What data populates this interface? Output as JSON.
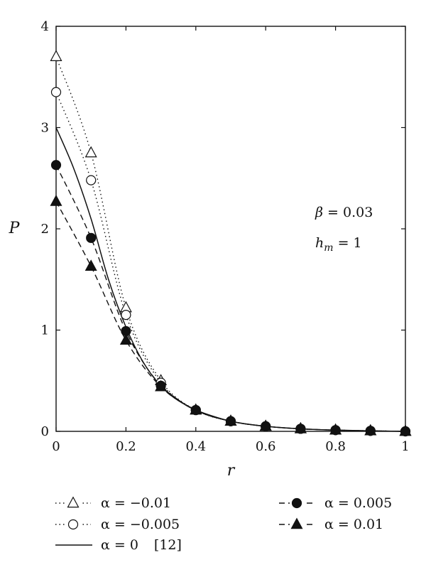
{
  "chart_data": {
    "type": "line",
    "xlabel": "r",
    "ylabel": "P",
    "xlim": [
      0,
      1
    ],
    "ylim": [
      0,
      4
    ],
    "xticks": [
      "0",
      "0.2",
      "0.4",
      "0.6",
      "0.8",
      "1"
    ],
    "yticks": [
      "0",
      "1",
      "2",
      "3",
      "4"
    ],
    "grid": false,
    "annotations": {
      "beta": {
        "symbol": "β",
        "eq": " = 0.03"
      },
      "hm": {
        "symbol": "h",
        "sub": "m",
        "eq": " = 1"
      }
    },
    "series": [
      {
        "name": "α = −0.01",
        "marker": "open-triangle",
        "line": "dotted",
        "x": [
          0,
          0.1,
          0.2,
          0.3,
          0.4,
          0.5,
          0.6,
          0.7,
          0.8,
          0.9,
          1
        ],
        "y": [
          3.7,
          2.75,
          1.22,
          0.5,
          0.21,
          0.1,
          0.05,
          0.025,
          0.012,
          0.005,
          0
        ]
      },
      {
        "name": "α = −0.005",
        "marker": "open-circle",
        "line": "dotted",
        "x": [
          0,
          0.1,
          0.2,
          0.3,
          0.4,
          0.5,
          0.6,
          0.7,
          0.8,
          0.9,
          1
        ],
        "y": [
          3.35,
          2.48,
          1.15,
          0.48,
          0.21,
          0.1,
          0.05,
          0.025,
          0.012,
          0.005,
          0
        ]
      },
      {
        "name": "α = 0",
        "ref": "[12]",
        "marker": "none",
        "line": "solid",
        "x": [
          0,
          0.05,
          0.1,
          0.15,
          0.2,
          0.25,
          0.3,
          0.35,
          0.4,
          0.5,
          0.6,
          0.7,
          0.8,
          0.9,
          1
        ],
        "y": [
          3.0,
          2.6,
          2.1,
          1.5,
          1.03,
          0.68,
          0.45,
          0.31,
          0.21,
          0.1,
          0.05,
          0.025,
          0.012,
          0.005,
          0
        ]
      },
      {
        "name": "α = 0.005",
        "marker": "filled-circle",
        "line": "dashed",
        "x": [
          0,
          0.1,
          0.2,
          0.3,
          0.4,
          0.5,
          0.6,
          0.7,
          0.8,
          0.9,
          1
        ],
        "y": [
          2.63,
          1.91,
          0.99,
          0.45,
          0.21,
          0.1,
          0.05,
          0.025,
          0.012,
          0.005,
          0
        ]
      },
      {
        "name": "α = 0.01",
        "marker": "filled-triangle",
        "line": "dashed",
        "x": [
          0,
          0.1,
          0.2,
          0.3,
          0.4,
          0.5,
          0.6,
          0.7,
          0.8,
          0.9,
          1
        ],
        "y": [
          2.27,
          1.63,
          0.9,
          0.44,
          0.21,
          0.1,
          0.05,
          0.025,
          0.012,
          0.005,
          0
        ]
      }
    ]
  }
}
